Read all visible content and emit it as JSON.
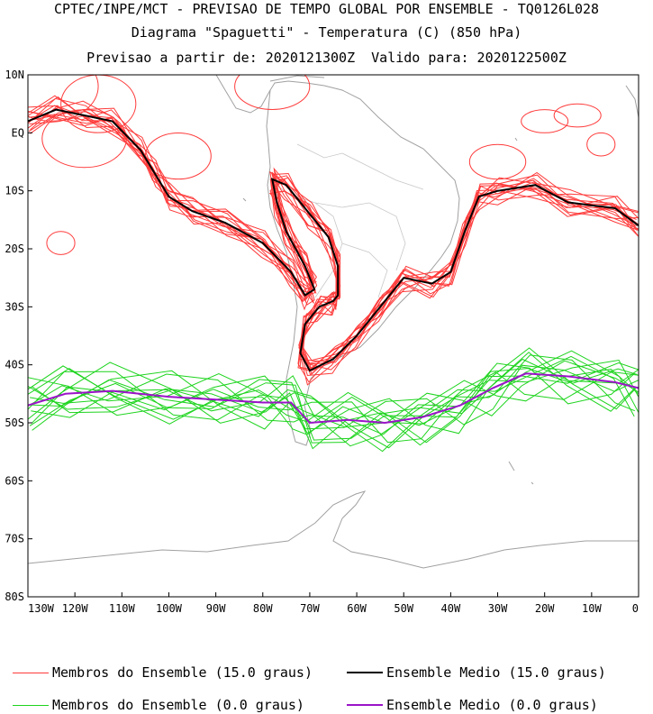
{
  "header": {
    "line1": "CPTEC/INPE/MCT - PREVISAO DE TEMPO GLOBAL POR ENSEMBLE - TQ0126L028",
    "line2": "Diagrama \"Spaguetti\" - Temperatura (C) (850 hPa)",
    "line3": "Previsao a partir de: 2020121300Z  Valido para: 2020122500Z"
  },
  "map": {
    "lon_range": [
      -130,
      0
    ],
    "lat_range": [
      -80,
      10
    ],
    "lat_labels": [
      "10N",
      "EQ",
      "10S",
      "20S",
      "30S",
      "40S",
      "50S",
      "60S",
      "70S",
      "80S"
    ],
    "lon_labels": [
      "130W",
      "120W",
      "110W",
      "100W",
      "90W",
      "80W",
      "70W",
      "60W",
      "50W",
      "40W",
      "30W",
      "20W",
      "10W",
      "0"
    ],
    "colors": {
      "members_15": "#ff3b3b",
      "mean_15": "#000000",
      "members_0": "#1ed41e",
      "mean_0": "#9a14c8",
      "coast": "#a0a0a0"
    },
    "mean_15_path": [
      [
        -130,
        2
      ],
      [
        -124,
        4
      ],
      [
        -118,
        3
      ],
      [
        -112,
        2
      ],
      [
        -106,
        -3
      ],
      [
        -103,
        -7
      ],
      [
        -100,
        -11
      ],
      [
        -95,
        -13.5
      ],
      [
        -88,
        -15.5
      ],
      [
        -80,
        -19
      ],
      [
        -74,
        -24
      ],
      [
        -71,
        -28
      ],
      [
        -69,
        -27
      ],
      [
        -71,
        -23
      ],
      [
        -75,
        -17
      ],
      [
        -77,
        -12
      ],
      [
        -78,
        -8
      ],
      [
        -75,
        -9
      ],
      [
        -70,
        -14
      ],
      [
        -66,
        -18
      ],
      [
        -64,
        -23
      ],
      [
        -64,
        -28
      ],
      [
        -65,
        -29
      ],
      [
        -68,
        -30
      ],
      [
        -71,
        -33
      ],
      [
        -72,
        -38
      ],
      [
        -70,
        -41
      ],
      [
        -65,
        -39
      ],
      [
        -60,
        -35
      ],
      [
        -55,
        -30
      ],
      [
        -50,
        -25
      ],
      [
        -44,
        -26
      ],
      [
        -40,
        -24
      ],
      [
        -37,
        -17
      ],
      [
        -34,
        -11
      ],
      [
        -30,
        -10
      ],
      [
        -22,
        -9
      ],
      [
        -15,
        -12
      ],
      [
        -5,
        -13
      ],
      [
        0,
        -16
      ]
    ],
    "mean_0_path": [
      [
        -130,
        -47
      ],
      [
        -122,
        -45
      ],
      [
        -112,
        -44.5
      ],
      [
        -100,
        -45.5
      ],
      [
        -90,
        -46
      ],
      [
        -80,
        -46.5
      ],
      [
        -74,
        -46.5
      ],
      [
        -70,
        -50
      ],
      [
        -62,
        -49.5
      ],
      [
        -54,
        -50
      ],
      [
        -46,
        -49
      ],
      [
        -38,
        -47
      ],
      [
        -31,
        -44
      ],
      [
        -24,
        -41.5
      ],
      [
        -15,
        -42
      ],
      [
        -5,
        -43
      ],
      [
        0,
        -44
      ]
    ]
  },
  "legend": {
    "members_15": "Membros do Ensemble (15.0 graus)",
    "mean_15": "Ensemble Medio (15.0 graus)",
    "members_0": "Membros do Ensemble (0.0 graus)",
    "mean_0": "Ensemble Medio (0.0 graus)"
  }
}
